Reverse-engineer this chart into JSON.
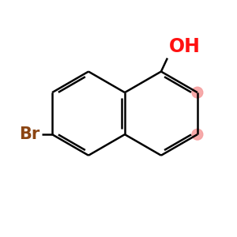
{
  "bond_color": "#000000",
  "oh_color": "#ff1111",
  "br_color": "#8B4513",
  "dot_color": "#f5a0a0",
  "background": "#ffffff",
  "line_width": 1.8,
  "doff": 0.07,
  "shrink": 0.13,
  "font_size_oh": 17,
  "font_size_br": 15,
  "scale": 1.0,
  "xlim": [
    -2.8,
    2.8
  ],
  "ylim": [
    -2.5,
    2.5
  ]
}
